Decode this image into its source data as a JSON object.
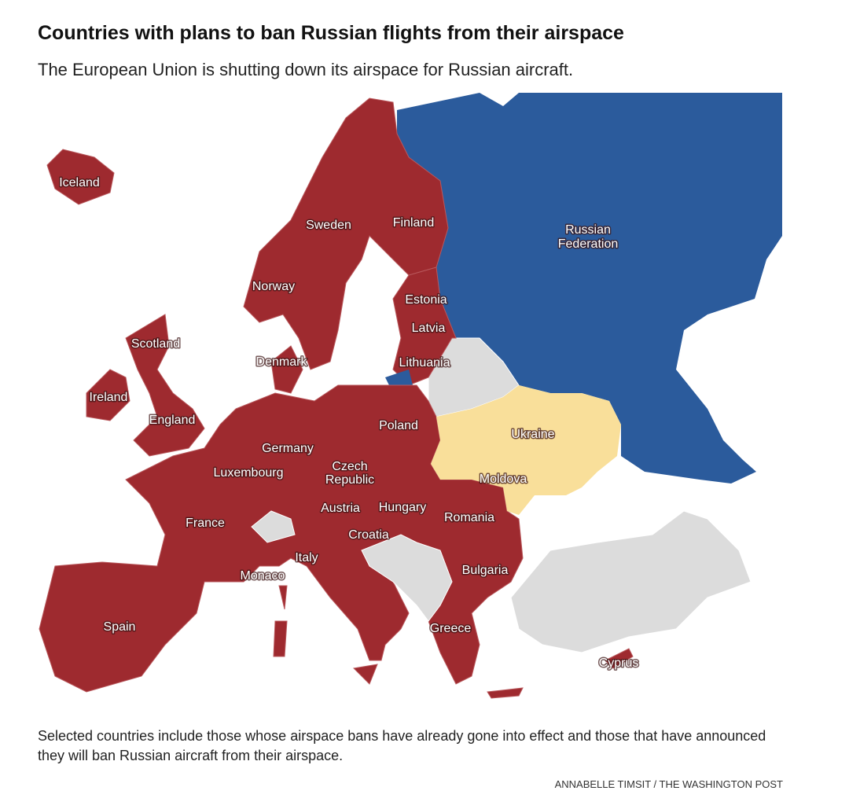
{
  "header": {
    "title": "Countries with plans to ban Russian flights from their airspace",
    "subtitle": "The European Union is shutting down its airspace for Russian aircraft."
  },
  "map": {
    "labels": [
      "Iceland",
      "Sweden",
      "Finland",
      [
        "Russian",
        "Federation"
      ],
      "Norway",
      "Estonia",
      "Latvia",
      "Scotland",
      "Denmark",
      "Lithuania",
      "Ireland",
      "England",
      "Poland",
      "Ukraine",
      "Germany",
      [
        "Czech",
        "Republic"
      ],
      "Luxembourg",
      "Moldova",
      "Austria",
      "Hungary",
      "France",
      "Romania",
      "Croatia",
      "Italy",
      "Monaco",
      "Bulgaria",
      "Spain",
      "Greece",
      "Cyprus"
    ]
  },
  "footer": {
    "note": "Selected countries include those whose airspace bans have already gone into effect and those that have announced they will ban Russian aircraft from their airspace.",
    "credit": "ANNABELLE TIMSIT / THE WASHINGTON POST"
  }
}
